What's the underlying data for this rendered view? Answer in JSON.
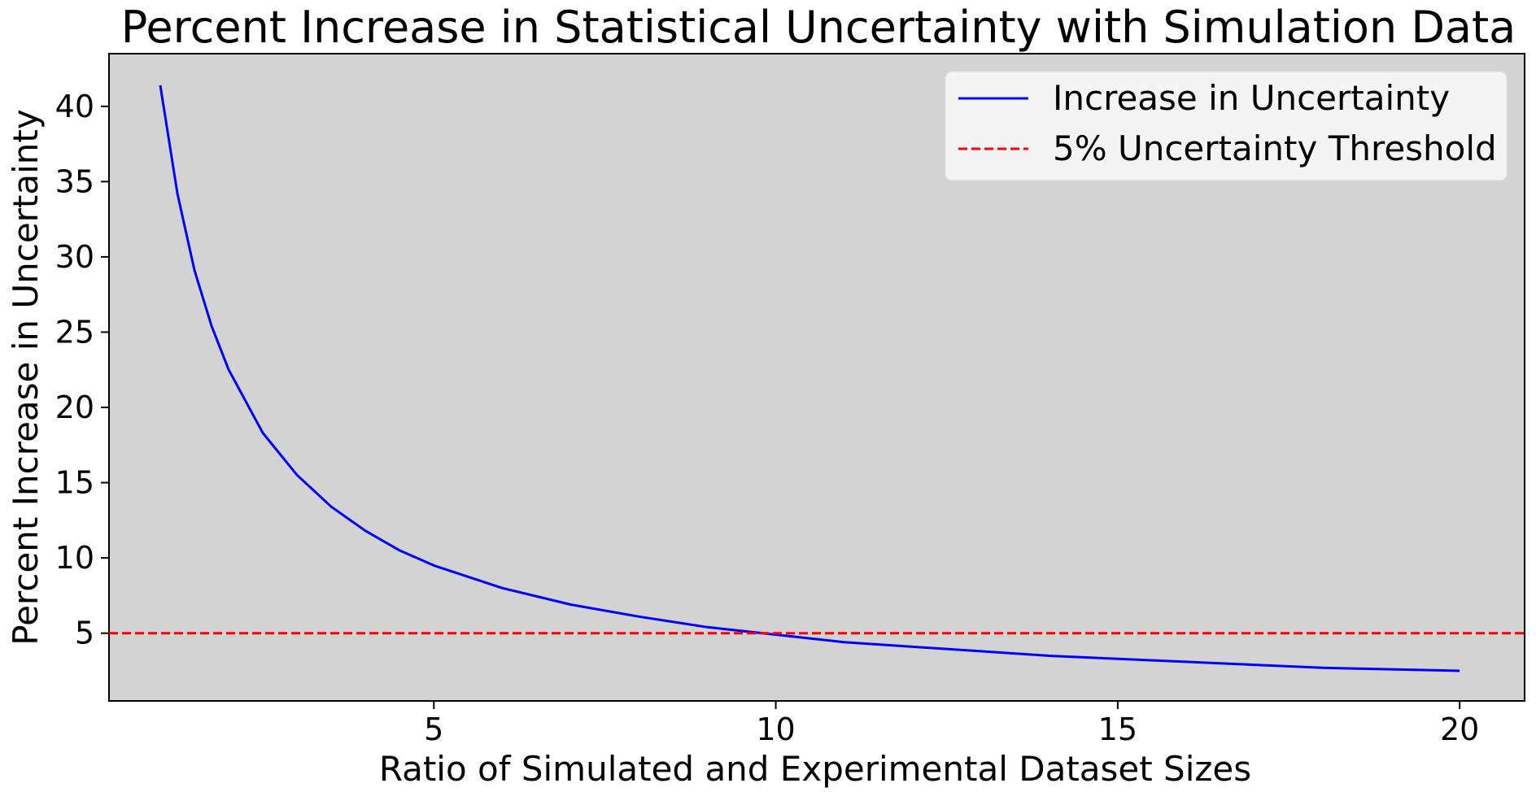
{
  "chart_data": {
    "type": "line",
    "title": "Percent Increase in Statistical Uncertainty with Simulation Data",
    "xlabel": "Ratio of Simulated and Experimental Dataset Sizes",
    "ylabel": "Percent Increase in Uncertainty",
    "xlim": [
      0.25,
      20.95
    ],
    "ylim": [
      0.5,
      43.5
    ],
    "x_ticks": [
      5,
      10,
      15,
      20
    ],
    "y_ticks": [
      5,
      10,
      15,
      20,
      25,
      30,
      35,
      40
    ],
    "x_tick_labels": [
      "5",
      "10",
      "15",
      "20"
    ],
    "y_tick_labels": [
      "5",
      "10",
      "15",
      "20",
      "25",
      "30",
      "35",
      "40"
    ],
    "grid": false,
    "plot_background": "#d3d3d3",
    "legend_position": "top-right",
    "series": [
      {
        "name": "Increase in Uncertainty",
        "color": "#0000ff",
        "style": "solid",
        "x": [
          1.0,
          1.25,
          1.5,
          1.75,
          2.0,
          2.5,
          3.0,
          3.5,
          4.0,
          4.5,
          5.0,
          6.0,
          7.0,
          8.0,
          9.0,
          10.0,
          11.0,
          12.0,
          13.0,
          14.0,
          15.0,
          16.0,
          17.0,
          18.0,
          19.0,
          20.0
        ],
        "y": [
          41.4,
          34.2,
          29.1,
          25.4,
          22.5,
          18.3,
          15.5,
          13.4,
          11.8,
          10.5,
          9.5,
          8.0,
          6.9,
          6.1,
          5.4,
          4.9,
          4.4,
          4.1,
          3.8,
          3.5,
          3.3,
          3.1,
          2.9,
          2.7,
          2.6,
          2.5
        ]
      },
      {
        "name": "5% Uncertainty Threshold",
        "color": "#ff0000",
        "style": "dashed",
        "hline": 5
      }
    ]
  }
}
